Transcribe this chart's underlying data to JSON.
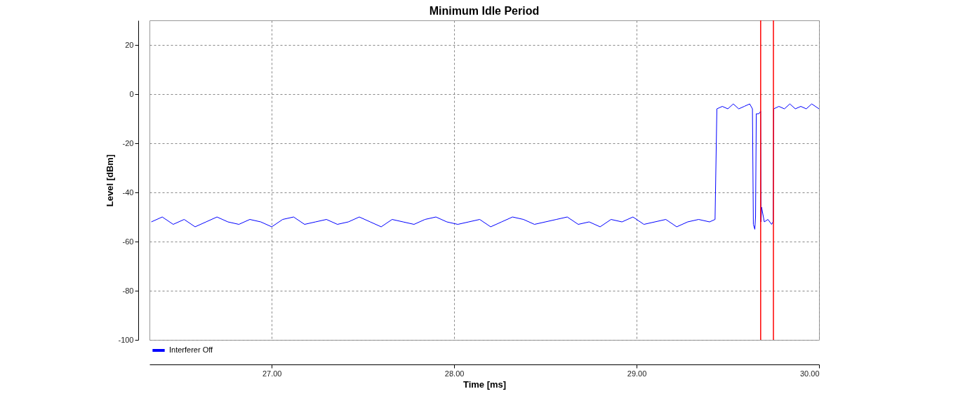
{
  "chart_data": {
    "type": "line",
    "title": "Minimum Idle Period",
    "xlabel": "Time [ms]",
    "ylabel": "Level [dBm]",
    "xlim": [
      26.33,
      30
    ],
    "xticks": [
      {
        "value": 27,
        "label": "27.00"
      },
      {
        "value": 28,
        "label": "28.00"
      },
      {
        "value": 29,
        "label": "29.00"
      },
      {
        "value": 30,
        "label": "30.00"
      }
    ],
    "ylim": [
      -100,
      30
    ],
    "yticks": [
      -100,
      -80,
      -60,
      -40,
      -20,
      0,
      20
    ],
    "grid": true,
    "legend": "bottom left",
    "line_style": "solid",
    "series": [
      {
        "name": "Interferer Off",
        "color": "#0000ff",
        "x": [
          26.34,
          26.4,
          26.46,
          26.52,
          26.58,
          26.64,
          26.7,
          26.76,
          26.82,
          26.88,
          26.94,
          27.0,
          27.06,
          27.12,
          27.18,
          27.24,
          27.3,
          27.36,
          27.42,
          27.48,
          27.54,
          27.6,
          27.66,
          27.72,
          27.78,
          27.84,
          27.9,
          27.96,
          28.02,
          28.08,
          28.14,
          28.2,
          28.26,
          28.32,
          28.38,
          28.44,
          28.5,
          28.56,
          28.62,
          28.68,
          28.74,
          28.8,
          28.86,
          28.92,
          28.98,
          29.04,
          29.1,
          29.16,
          29.22,
          29.28,
          29.34,
          29.4,
          29.43,
          29.44,
          29.47,
          29.5,
          29.53,
          29.56,
          29.59,
          29.62,
          29.635,
          29.64,
          29.648,
          29.652,
          29.656,
          29.67,
          29.68,
          29.682,
          29.685,
          29.7,
          29.72,
          29.74,
          29.748,
          29.752,
          29.78,
          29.81,
          29.84,
          29.87,
          29.9,
          29.93,
          29.96,
          30.0
        ],
        "values": [
          -52,
          -50,
          -53,
          -51,
          -54,
          -52,
          -50,
          -52,
          -53,
          -51,
          -52,
          -54,
          -51,
          -50,
          -53,
          -52,
          -51,
          -53,
          -52,
          -50,
          -52,
          -54,
          -51,
          -52,
          -53,
          -51,
          -50,
          -52,
          -53,
          -52,
          -51,
          -54,
          -52,
          -50,
          -51,
          -53,
          -52,
          -51,
          -50,
          -53,
          -52,
          -54,
          -51,
          -52,
          -50,
          -53,
          -52,
          -51,
          -54,
          -52,
          -51,
          -52,
          -51,
          -6,
          -5,
          -6,
          -4,
          -6,
          -5,
          -4,
          -6,
          -53,
          -55,
          -50,
          -8,
          -8,
          -7,
          -52,
          -46,
          -52,
          -51,
          -53,
          -52,
          -6,
          -5,
          -6,
          -4,
          -6,
          -5,
          -6,
          -4,
          -6
        ]
      }
    ],
    "ref_lines": [
      {
        "axis": "x",
        "value": 29.68,
        "color": "#ff0000"
      },
      {
        "axis": "x",
        "value": 29.75,
        "color": "#ff0000"
      }
    ]
  }
}
